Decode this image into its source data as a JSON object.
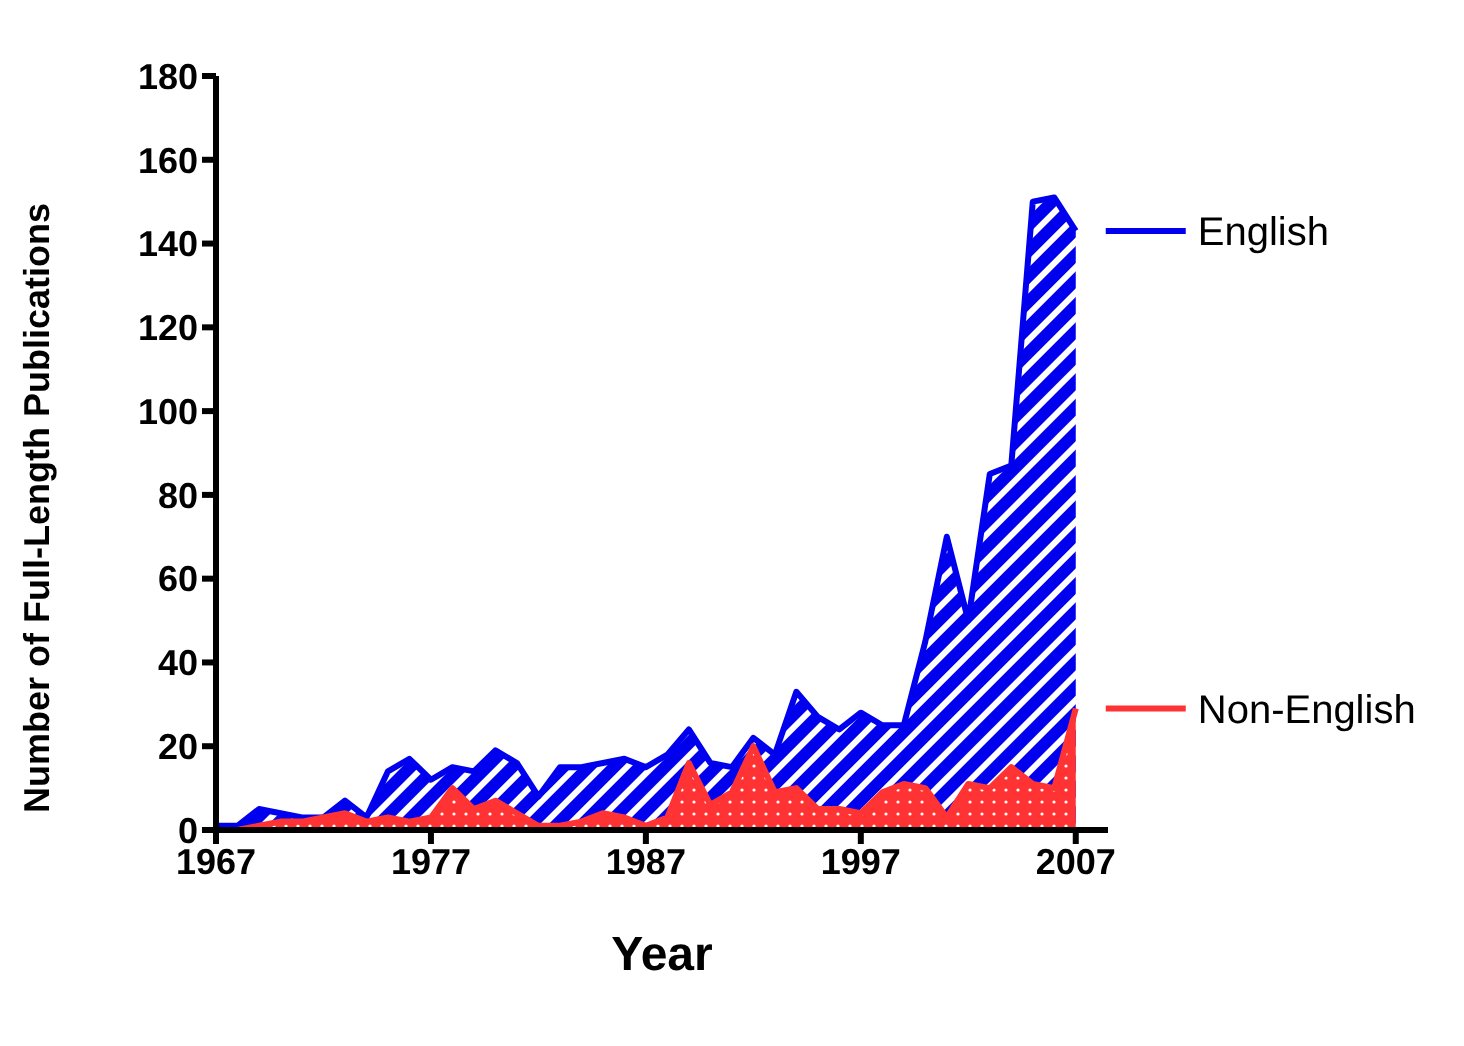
{
  "chart_data": {
    "type": "area",
    "xlabel": "Year",
    "ylabel": "Number of Full-Length Publications",
    "x": [
      1967,
      1968,
      1969,
      1970,
      1971,
      1972,
      1973,
      1974,
      1975,
      1976,
      1977,
      1978,
      1979,
      1980,
      1981,
      1982,
      1983,
      1984,
      1985,
      1986,
      1987,
      1988,
      1989,
      1990,
      1991,
      1992,
      1993,
      1994,
      1995,
      1996,
      1997,
      1998,
      1999,
      2000,
      2001,
      2002,
      2003,
      2004,
      2005,
      2006,
      2007
    ],
    "series": [
      {
        "name": "English",
        "color": "#0000ee",
        "values": [
          1,
          1,
          5,
          4,
          3,
          3,
          7,
          3,
          14,
          17,
          12,
          15,
          14,
          19,
          16,
          8,
          15,
          15,
          16,
          17,
          15,
          18,
          24,
          16,
          15,
          22,
          18,
          33,
          27,
          24,
          28,
          25,
          25,
          45,
          70,
          50,
          85,
          87,
          150,
          151,
          143
        ]
      },
      {
        "name": "Non-English",
        "color": "#ff3333",
        "values": [
          0,
          0,
          1,
          2,
          2,
          3,
          4,
          2,
          3,
          2,
          3,
          10,
          5,
          7,
          4,
          1,
          1,
          2,
          4,
          3,
          1,
          3,
          16,
          6,
          9,
          20,
          9,
          10,
          5,
          5,
          4,
          9,
          11,
          10,
          3,
          11,
          10,
          15,
          11,
          10,
          29
        ]
      }
    ],
    "xlim": [
      1967,
      2008.5
    ],
    "xticks": [
      1967,
      1977,
      1987,
      1997,
      2007
    ],
    "ylim": [
      0,
      180
    ],
    "yticks": [
      0,
      20,
      40,
      60,
      80,
      100,
      120,
      140,
      160,
      180
    ],
    "grid": false,
    "legend": "right"
  }
}
